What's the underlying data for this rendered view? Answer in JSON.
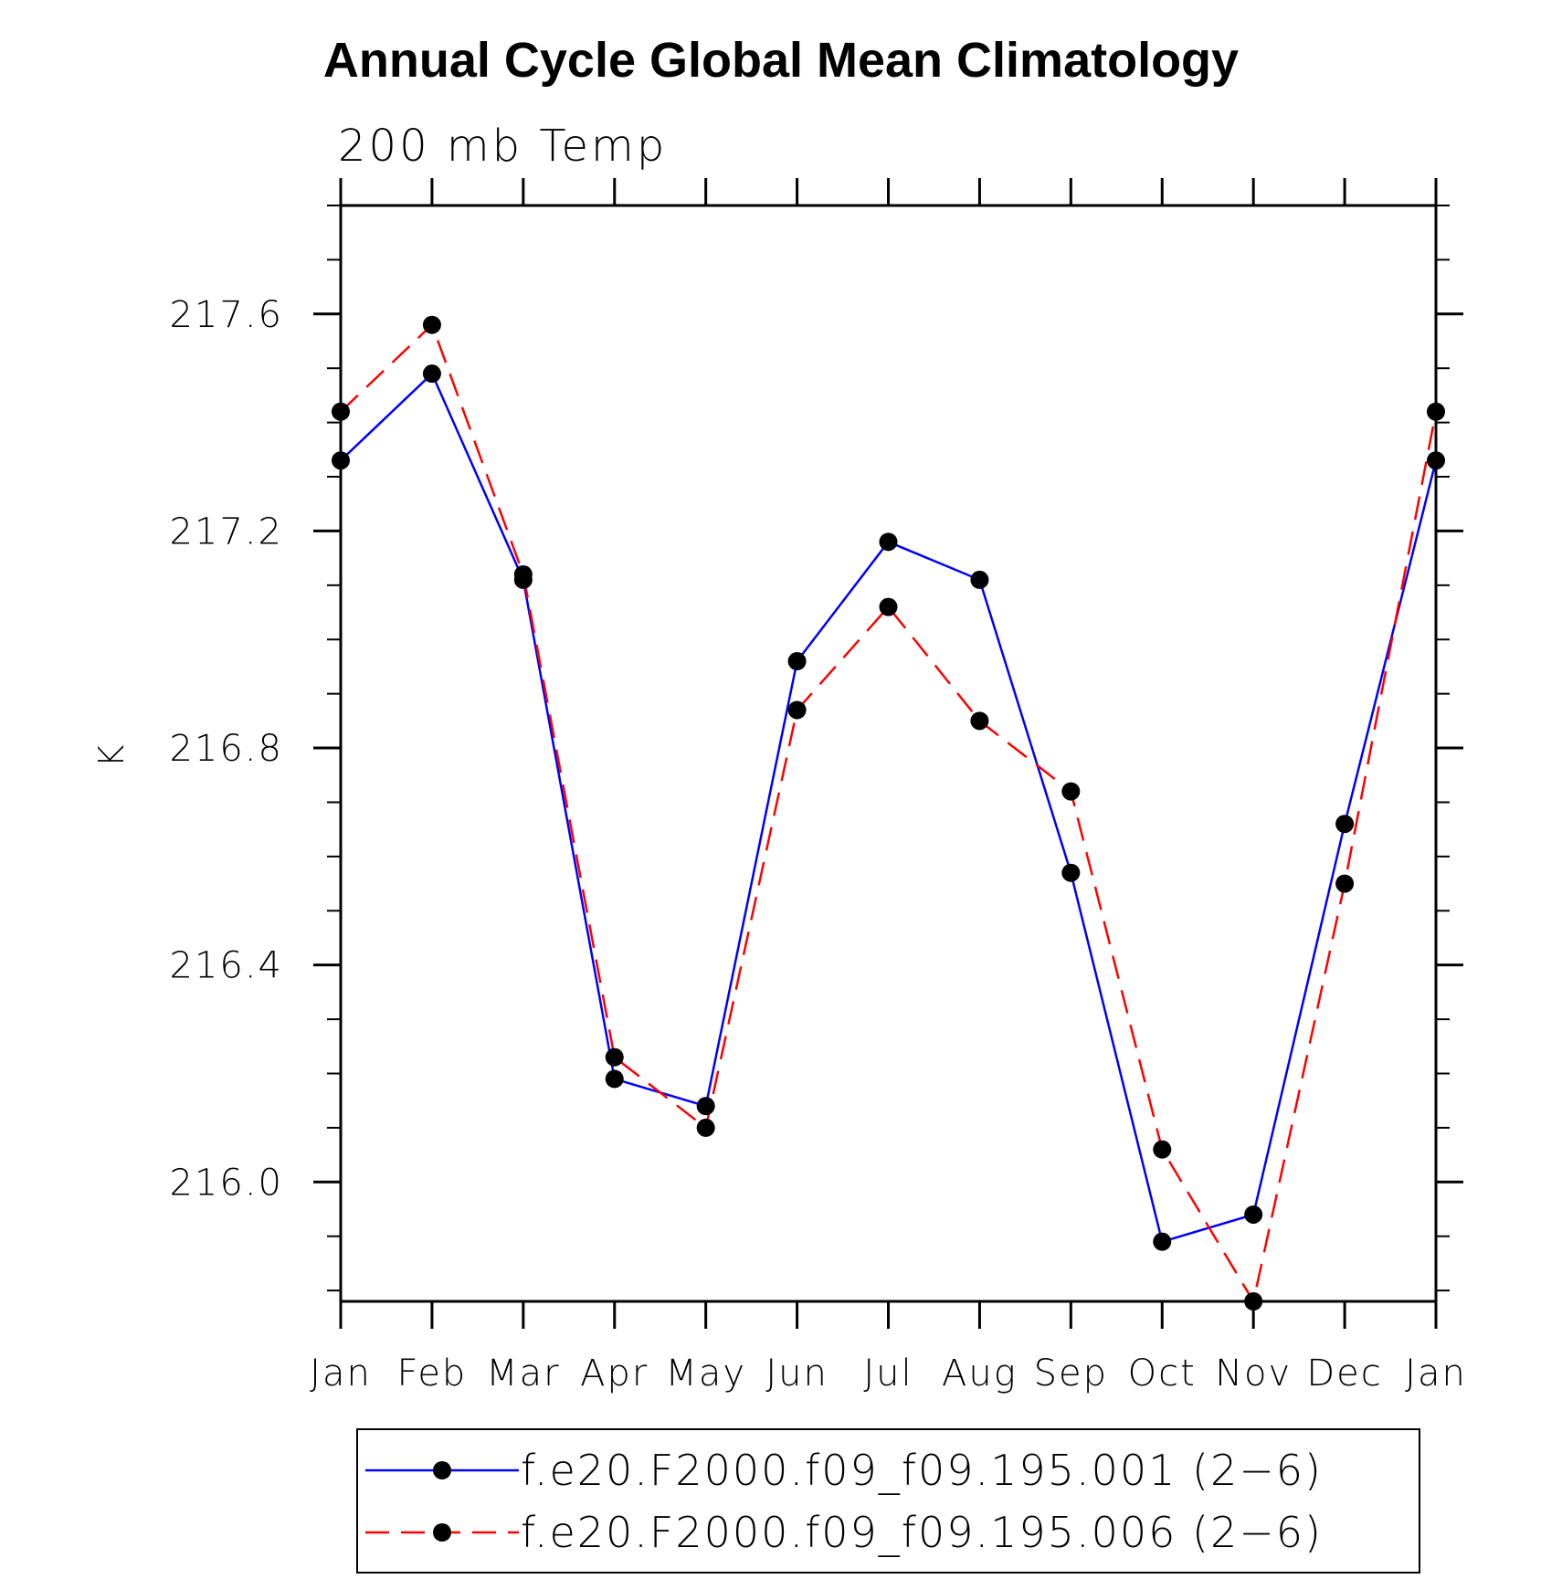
{
  "chart_data": {
    "type": "line",
    "title": "Annual Cycle Global Mean Climatology",
    "subtitle": "200 mb Temp",
    "xlabel": "",
    "ylabel": "K",
    "categories": [
      "Jan",
      "Feb",
      "Mar",
      "Apr",
      "May",
      "Jun",
      "Jul",
      "Aug",
      "Sep",
      "Oct",
      "Nov",
      "Dec",
      "Jan"
    ],
    "ylim": [
      215.78,
      217.8
    ],
    "yticks": [
      216.0,
      216.4,
      216.8,
      217.2,
      217.6
    ],
    "ytick_labels": [
      "216.0",
      "216.4",
      "216.8",
      "217.2",
      "217.6"
    ],
    "grid": false,
    "legend_position": "bottom",
    "series": [
      {
        "name": "f.e20.F2000.f09_f09.195.001 (2−6)",
        "color": "#0000ff",
        "style": "solid",
        "values": [
          217.33,
          217.49,
          217.11,
          216.19,
          216.14,
          216.96,
          217.18,
          217.11,
          216.57,
          215.89,
          215.94,
          216.66,
          217.33
        ]
      },
      {
        "name": "f.e20.F2000.f09_f09.195.006 (2−6)",
        "color": "#ff0000",
        "style": "dashed",
        "values": [
          217.42,
          217.58,
          217.12,
          216.23,
          216.1,
          216.87,
          217.06,
          216.85,
          216.72,
          216.06,
          215.78,
          216.55,
          217.42
        ]
      }
    ]
  }
}
